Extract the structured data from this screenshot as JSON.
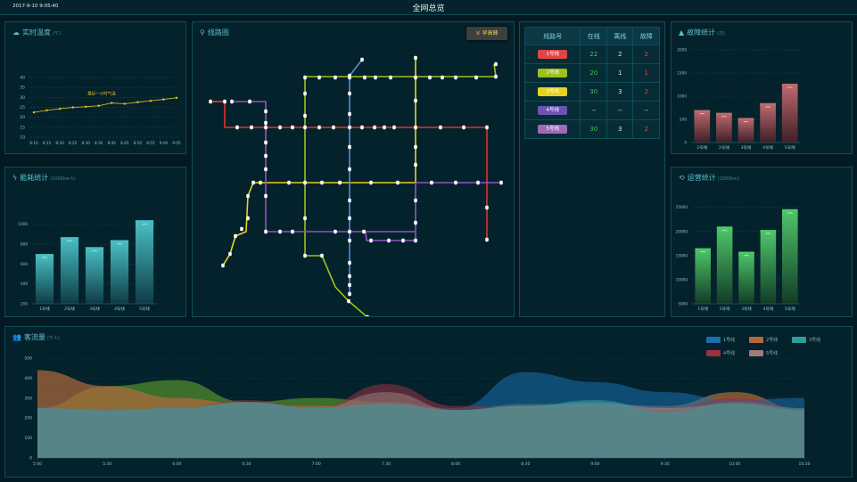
{
  "header": {
    "datetime": "2017-9-10 9:05:40",
    "title": "全网总览"
  },
  "temperature": {
    "title": "实时温度",
    "unit": "(℃)",
    "series_label": "最近一小时气温",
    "icon": "cloud-icon",
    "chart_data": {
      "type": "line",
      "x": [
        "8:10",
        "8:15",
        "8:20",
        "8:25",
        "8:30",
        "8:35",
        "8:40",
        "8:45",
        "8:50",
        "8:55",
        "9:00",
        "9:05"
      ],
      "y": [
        22.5,
        23.5,
        24.3,
        25,
        25.3,
        25.8,
        27.2,
        26.8,
        27.6,
        28.3,
        29,
        29.8
      ],
      "yticks": [
        10,
        15,
        20,
        25,
        30,
        35,
        40
      ],
      "ylim": [
        10,
        40
      ],
      "color": "#e6c02b"
    }
  },
  "energy": {
    "title": "能耗统计",
    "unit": "(1000kw·h)",
    "icon": "bolt-icon",
    "chart_data": {
      "type": "bar",
      "categories": [
        "1号线",
        "2号线",
        "3号线",
        "4号线",
        "5号线"
      ],
      "values": [
        700,
        870,
        770,
        840,
        1040
      ],
      "yticks": [
        200,
        400,
        600,
        800,
        1000
      ],
      "ylim": [
        200,
        1150
      ],
      "color": "#2d9da8"
    }
  },
  "map": {
    "title": "线路图",
    "icon": "map-pin-icon",
    "peak_button": "早高峰"
  },
  "line_table": {
    "headers": [
      "线路号",
      "在线",
      "离线",
      "故障"
    ],
    "rows": [
      {
        "name": "1号线",
        "color": "#e04545",
        "online": "22",
        "offline": "2",
        "fault": "2"
      },
      {
        "name": "2号线",
        "color": "#9bc11b",
        "online": "20",
        "offline": "1",
        "fault": "1"
      },
      {
        "name": "3号线",
        "color": "#e6d21d",
        "online": "30",
        "offline": "3",
        "fault": "2"
      },
      {
        "name": "4号线",
        "color": "#6a55b5",
        "online": "--",
        "offline": "--",
        "fault": "--"
      },
      {
        "name": "5号线",
        "color": "#a06ab8",
        "online": "30",
        "offline": "3",
        "fault": "2"
      }
    ]
  },
  "fault_stats": {
    "title": "故障统计",
    "unit": "(次)",
    "icon": "warning-icon",
    "chart_data": {
      "type": "bar",
      "categories": [
        "1号线",
        "2号线",
        "3号线",
        "4号线",
        "5号线"
      ],
      "values": [
        700,
        640,
        530,
        850,
        1270
      ],
      "yticks": [
        0,
        500,
        1000,
        1500,
        2000
      ],
      "ylim": [
        0,
        2000
      ],
      "color": "#b05a5f"
    }
  },
  "mileage": {
    "title": "运营统计",
    "unit": "(1000km)",
    "icon": "history-icon",
    "chart_data": {
      "type": "bar",
      "categories": [
        "1号线",
        "2号线",
        "3号线",
        "4号线",
        "5号线"
      ],
      "values": [
        16500,
        21000,
        15800,
        20300,
        24600
      ],
      "yticks": [
        5000,
        10000,
        15000,
        20000,
        25000
      ],
      "ylim": [
        5000,
        25500
      ],
      "color": "#3fae5a"
    }
  },
  "flow": {
    "title": "客流量",
    "unit": "(千人)",
    "icon": "users-icon",
    "chart_data": {
      "type": "area",
      "x": [
        "5:00",
        "5:30",
        "6:00",
        "6:30",
        "7:00",
        "7:30",
        "8:00",
        "8:30",
        "9:00",
        "9:30",
        "10:00",
        "10:30"
      ],
      "yticks": [
        0,
        100,
        200,
        300,
        400,
        500
      ],
      "ylim": [
        0,
        500
      ],
      "series": [
        {
          "name": "1号线",
          "color": "#1a6fb0",
          "values": [
            250,
            240,
            250,
            280,
            250,
            270,
            250,
            430,
            380,
            330,
            290,
            300
          ]
        },
        {
          "name": "2号线",
          "color": "#b26a3d",
          "values": [
            440,
            360,
            300,
            270,
            260,
            270,
            240,
            270,
            270,
            260,
            330,
            240
          ]
        },
        {
          "name": "3号线",
          "color": "#2d9e9c",
          "values": [
            250,
            240,
            250,
            280,
            250,
            270,
            240,
            260,
            290,
            230,
            280,
            250
          ]
        },
        {
          "name": "4号线",
          "color": "#9a3240",
          "values": [
            250,
            240,
            250,
            290,
            250,
            370,
            260,
            250,
            260,
            240,
            300,
            250
          ]
        },
        {
          "name": "5号线",
          "color": "#9a7e7e",
          "values": [
            250,
            240,
            250,
            280,
            250,
            330,
            240,
            260,
            280,
            250,
            270,
            240
          ]
        }
      ],
      "green_band": {
        "color": "#4e8a2c",
        "values": [
          250,
          360,
          390,
          280,
          300,
          280,
          240,
          260,
          250,
          250,
          270,
          240
        ]
      }
    }
  }
}
